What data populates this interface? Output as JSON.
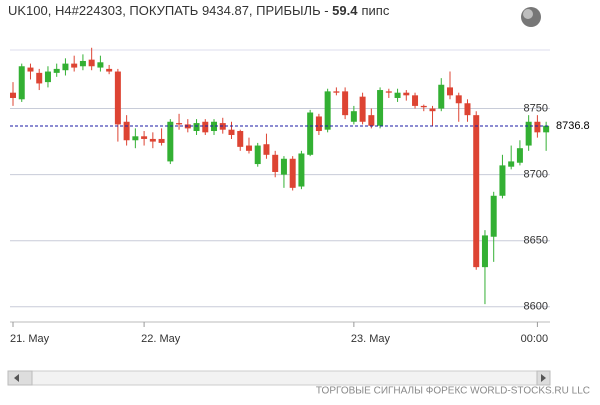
{
  "chart_data": {
    "type": "candlestick",
    "title": "UK100, H4#224303, ПОКУПАТЬ 9434.87, ПРИБЫЛЬ - ",
    "profit": "59.4",
    "profit_unit": "пипс",
    "footer": "ТОРГОВЫЕ СИГНАЛЫ ФОРЕКС WORLD-STOCKS.RU LLC",
    "categories": [
      "21. May",
      null,
      null,
      null,
      null,
      null,
      null,
      null,
      null,
      null,
      null,
      null,
      null,
      null,
      null,
      "22. May",
      null,
      null,
      null,
      null,
      null,
      null,
      null,
      null,
      null,
      null,
      null,
      null,
      null,
      null,
      null,
      null,
      null,
      null,
      null,
      null,
      null,
      null,
      null,
      "23. May",
      null,
      null,
      null,
      null,
      null,
      null,
      null,
      null,
      null,
      null,
      null,
      null,
      null,
      null,
      null,
      null,
      null,
      null,
      null,
      null,
      "00:00",
      null
    ],
    "open": [
      8762,
      8757,
      8781,
      8777,
      8770,
      8777,
      8779,
      8784,
      8782,
      8787,
      8781,
      8780,
      8778,
      8740,
      8726,
      8729,
      8727,
      8727,
      8710,
      8739,
      8738,
      8733,
      8740,
      8733,
      8739,
      8734,
      8733,
      8722,
      8708,
      8723,
      8715,
      8700,
      8712,
      8691,
      8715,
      8744,
      8734,
      8763,
      8763,
      8740,
      8759,
      8745,
      8737,
      8763,
      8758,
      8762,
      8760,
      8752,
      8750,
      8750,
      8766,
      8760,
      8754,
      8745,
      8630,
      8653,
      8684,
      8706,
      8709,
      8722,
      8740,
      8732
    ],
    "high": [
      8770,
      8784,
      8784,
      8780,
      8782,
      8784,
      8788,
      8790,
      8791,
      8796,
      8790,
      8783,
      8780,
      8745,
      8735,
      8733,
      8732,
      8735,
      8742,
      8746,
      8742,
      8742,
      8742,
      8742,
      8743,
      8740,
      8734,
      8728,
      8724,
      8731,
      8718,
      8714,
      8714,
      8718,
      8749,
      8746,
      8765,
      8766,
      8766,
      8752,
      8762,
      8750,
      8766,
      8765,
      8765,
      8764,
      8762,
      8753,
      8752,
      8773,
      8778,
      8762,
      8757,
      8748,
      8658,
      8687,
      8715,
      8722,
      8726,
      8745,
      8745,
      8740
    ],
    "low": [
      8752,
      8755,
      8772,
      8764,
      8766,
      8774,
      8775,
      8778,
      8779,
      8779,
      8778,
      8776,
      8725,
      8722,
      8720,
      8722,
      8720,
      8722,
      8708,
      8734,
      8732,
      8730,
      8730,
      8730,
      8731,
      8727,
      8718,
      8716,
      8706,
      8712,
      8698,
      8690,
      8688,
      8689,
      8714,
      8730,
      8732,
      8760,
      8742,
      8738,
      8738,
      8735,
      8735,
      8758,
      8755,
      8756,
      8750,
      8748,
      8737,
      8748,
      8757,
      8740,
      8740,
      8628,
      8602,
      8634,
      8682,
      8704,
      8707,
      8718,
      8728,
      8718
    ],
    "close": [
      8758,
      8782,
      8778,
      8769,
      8778,
      8780,
      8784,
      8781,
      8786,
      8782,
      8785,
      8778,
      8738,
      8726,
      8729,
      8727,
      8725,
      8724,
      8740,
      8738,
      8735,
      8739,
      8732,
      8740,
      8734,
      8730,
      8721,
      8718,
      8722,
      8715,
      8702,
      8712,
      8690,
      8716,
      8747,
      8733,
      8763,
      8762,
      8745,
      8748,
      8740,
      8737,
      8764,
      8762,
      8762,
      8760,
      8752,
      8751,
      8748,
      8768,
      8760,
      8754,
      8745,
      8630,
      8654,
      8684,
      8707,
      8710,
      8720,
      8740,
      8732,
      8737
    ],
    "up_color": "#33b033",
    "down_color": "#dd4433",
    "price_line": {
      "value": 8736.8,
      "color": "#1a1aa6"
    },
    "ylim": [
      8590,
      8817
    ],
    "yticks": [
      8600,
      8650,
      8700,
      8750
    ],
    "grid": true
  }
}
